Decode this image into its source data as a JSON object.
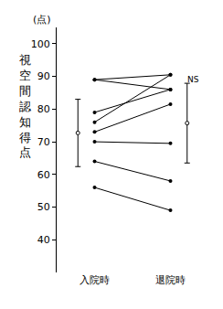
{
  "chart_data": {
    "type": "line",
    "y_label": "視空間認知得点",
    "y_unit": "(点)",
    "categories": [
      "入院時",
      "退院時"
    ],
    "series": [
      {
        "values": [
          89,
          90.5
        ]
      },
      {
        "values": [
          89,
          86
        ]
      },
      {
        "values": [
          79,
          86
        ]
      },
      {
        "values": [
          76,
          90.5
        ]
      },
      {
        "values": [
          73,
          81.5
        ]
      },
      {
        "values": [
          70,
          69.5
        ]
      },
      {
        "values": [
          64,
          58
        ]
      },
      {
        "values": [
          56,
          49
        ]
      }
    ],
    "summary": {
      "values": [
        72.7,
        75.7
      ],
      "errors": [
        10.3,
        12.2
      ]
    },
    "annotations": [
      {
        "text": "NS",
        "x": 1,
        "y": 89
      }
    ],
    "color": "#000000",
    "marker": "circle",
    "ylim": [
      30,
      105
    ],
    "yticks": [
      40,
      50,
      60,
      70,
      80,
      90,
      100
    ],
    "grid": false
  }
}
